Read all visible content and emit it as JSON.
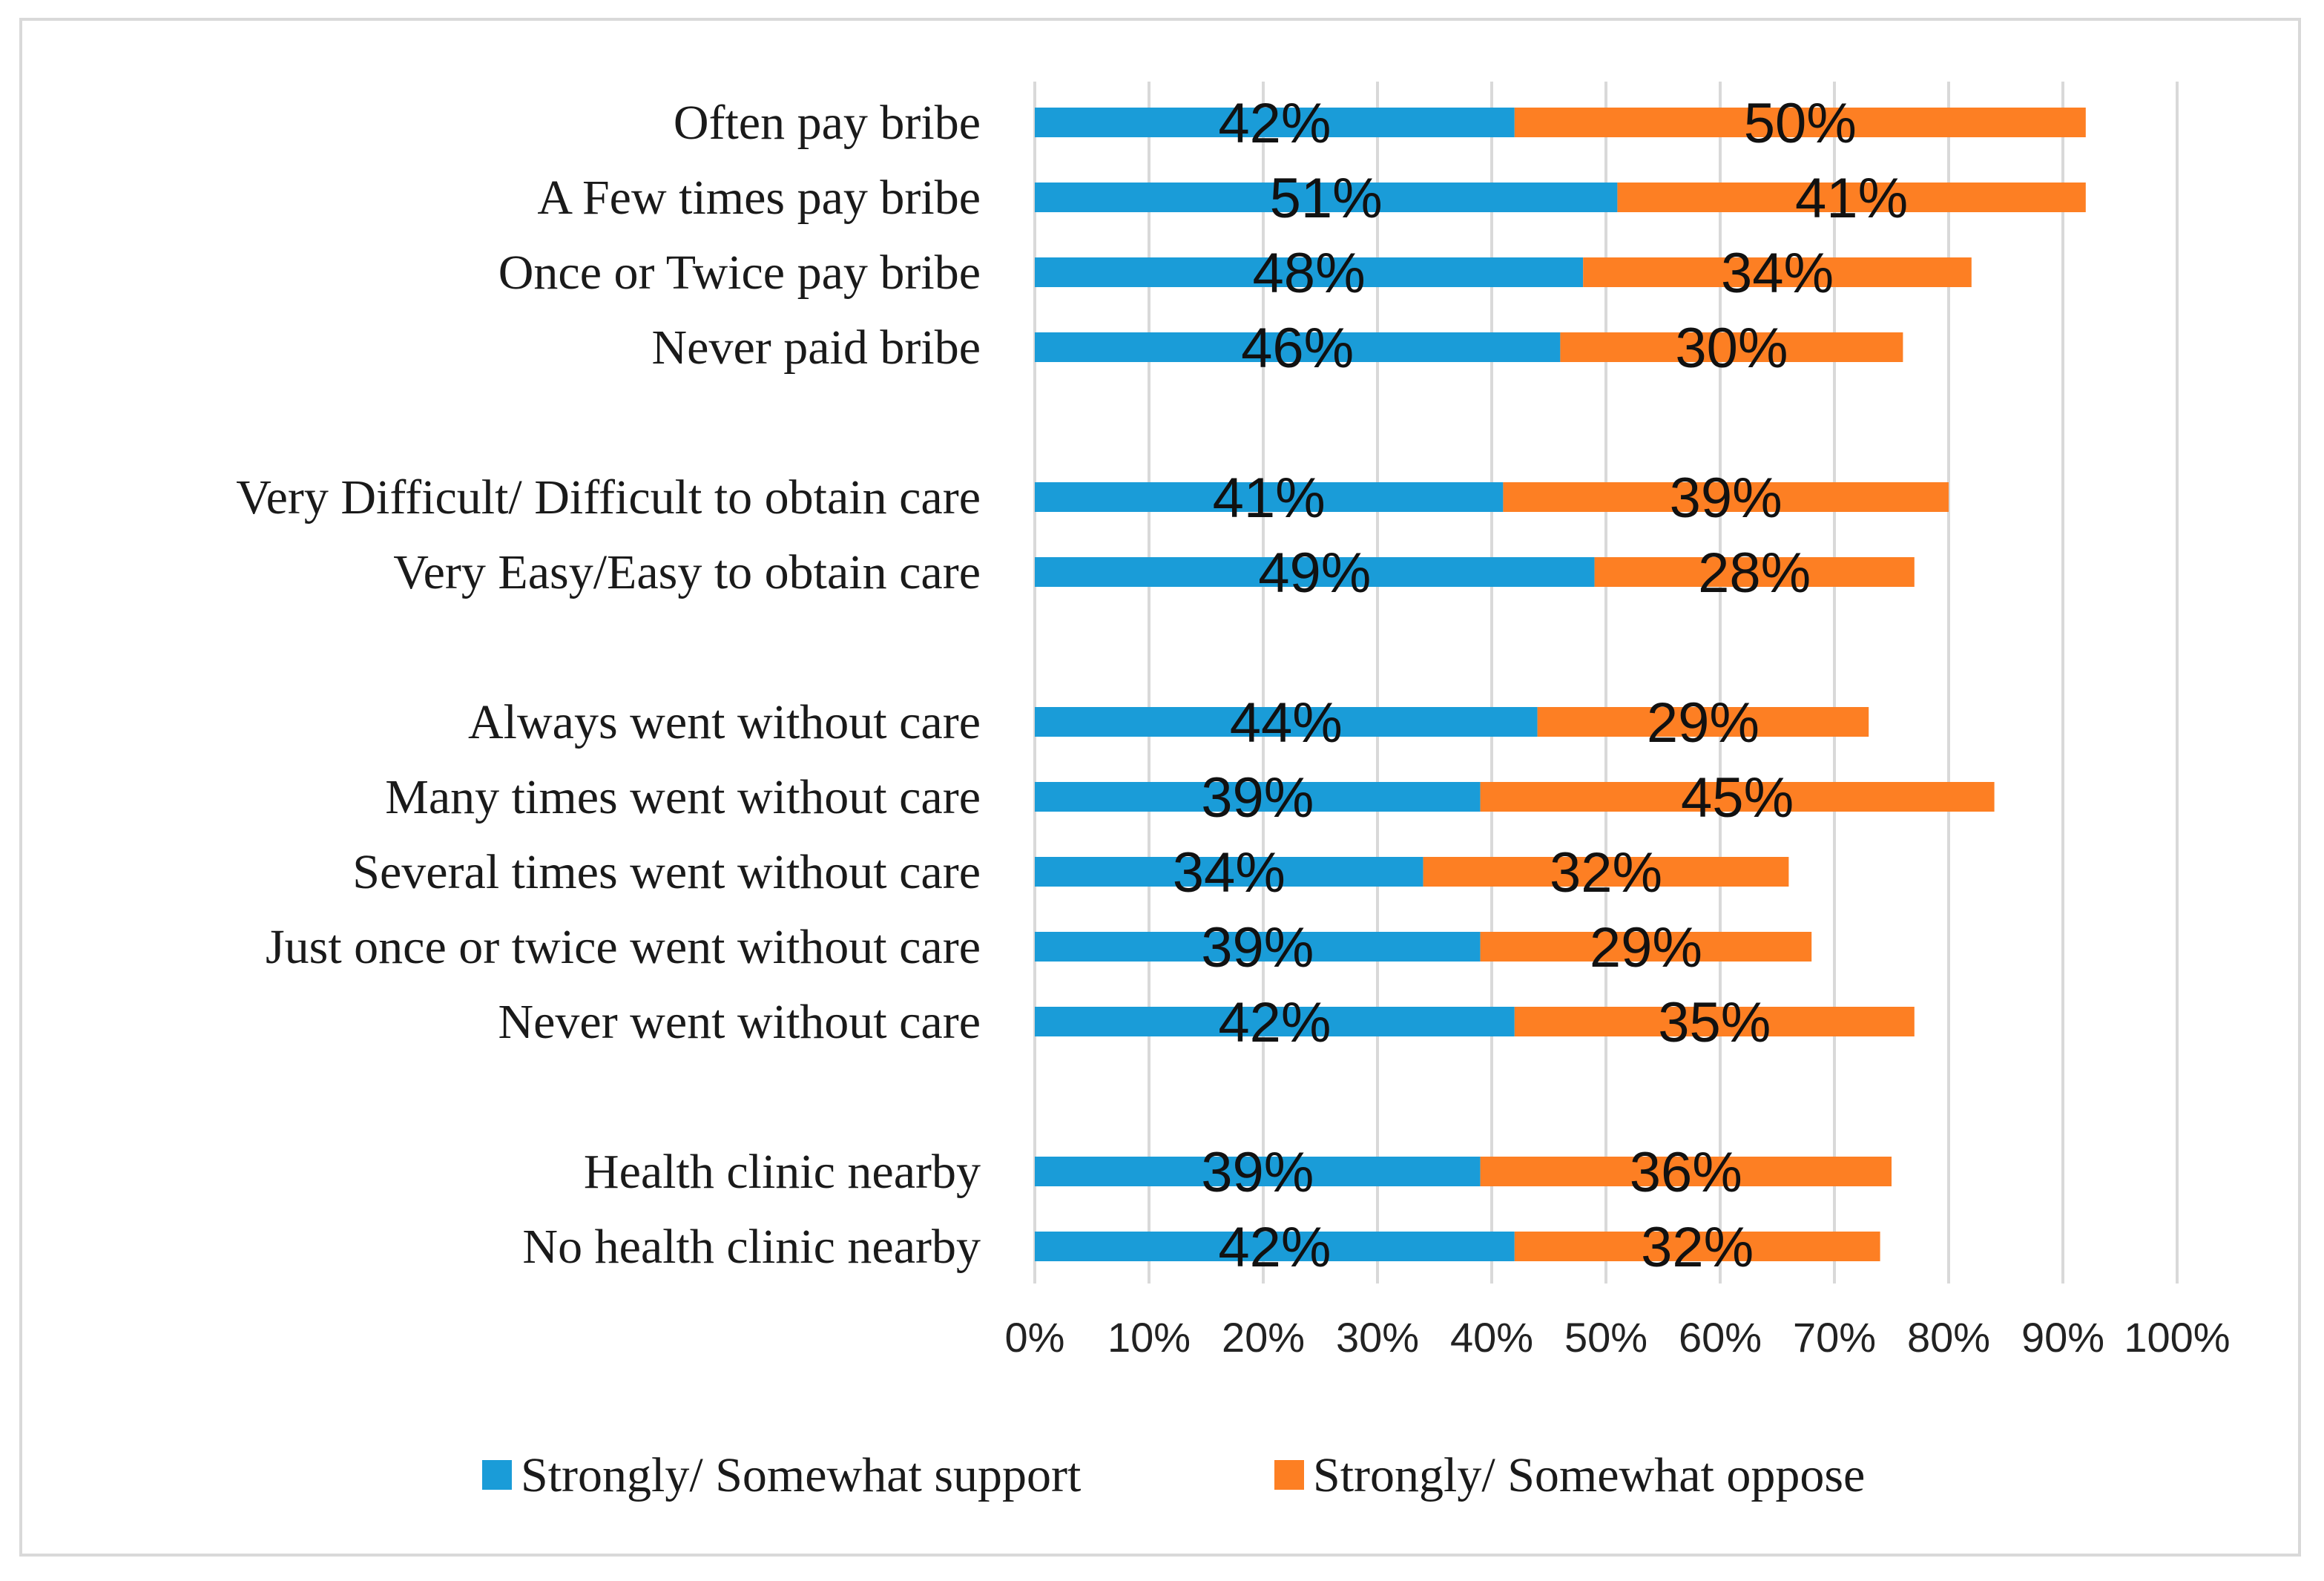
{
  "chart_data": {
    "type": "bar",
    "orientation": "horizontal",
    "stacked": true,
    "title": "",
    "xlabel": "",
    "ylabel": "",
    "xlim": [
      0,
      100
    ],
    "grid": true,
    "legend_position": "bottom",
    "categories": [
      "Often pay bribe",
      "A Few times pay bribe",
      "Once or Twice pay bribe",
      "Never paid bribe",
      "Very Difficult/ Difficult to obtain care",
      "Very Easy/Easy to obtain care",
      "Always went without care",
      "Many times went without care",
      "Several times went without care",
      "Just once or twice went without care",
      "Never went without care",
      "Health clinic nearby",
      "No health clinic nearby"
    ],
    "groups": [
      [
        0,
        1,
        2,
        3
      ],
      [
        4,
        5
      ],
      [
        6,
        7,
        8,
        9,
        10
      ],
      [
        11,
        12
      ]
    ],
    "series": [
      {
        "name": "Strongly/ Somewhat support",
        "color": "#1a9cd8",
        "values": [
          42,
          51,
          48,
          46,
          41,
          49,
          44,
          39,
          34,
          39,
          42,
          39,
          42
        ],
        "labels": [
          "42%",
          "51%",
          "48%",
          "46%",
          "41%",
          "49%",
          "44%",
          "39%",
          "34%",
          "39%",
          "42%",
          "39%",
          "42%"
        ]
      },
      {
        "name": "Strongly/ Somewhat oppose",
        "color": "#fd7f23",
        "values": [
          50,
          41,
          34,
          30,
          39,
          28,
          29,
          45,
          32,
          29,
          35,
          36,
          32
        ],
        "labels": [
          "50%",
          "41%",
          "34%",
          "30%",
          "39%",
          "28%",
          "29%",
          "45%",
          "32%",
          "29%",
          "35%",
          "36%",
          "32%"
        ]
      }
    ],
    "ticks": [
      0,
      10,
      20,
      30,
      40,
      50,
      60,
      70,
      80,
      90,
      100
    ],
    "tick_labels": [
      "0%",
      "10%",
      "20%",
      "30%",
      "40%",
      "50%",
      "60%",
      "70%",
      "80%",
      "90%",
      "100%"
    ]
  },
  "colors": {
    "gridline": "#d9d9d9",
    "frame": "#d9d9d9"
  }
}
